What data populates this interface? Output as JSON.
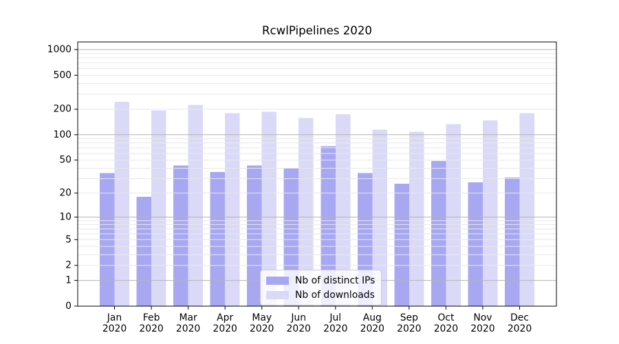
{
  "chart_data": {
    "type": "bar",
    "title": "RcwlPipelines 2020",
    "categories": {
      "months": [
        "Jan",
        "Feb",
        "Mar",
        "Apr",
        "May",
        "Jun",
        "Jul",
        "Aug",
        "Sep",
        "Oct",
        "Nov",
        "Dec"
      ],
      "year": "2020"
    },
    "series": [
      {
        "name": "Nb of distinct IPs",
        "color": "#a8a8f2",
        "values": [
          35,
          18,
          43,
          36,
          43,
          40,
          73,
          35,
          26,
          49,
          27,
          31
        ]
      },
      {
        "name": "Nb of downloads",
        "color": "#dadaf8",
        "values": [
          245,
          193,
          225,
          180,
          186,
          158,
          175,
          115,
          108,
          133,
          148,
          179
        ]
      }
    ],
    "y_axis": {
      "scale": "log1p",
      "ticks": [
        0,
        1,
        2,
        5,
        10,
        20,
        50,
        100,
        200,
        500,
        1000
      ],
      "major_ticks": [
        1,
        10,
        100,
        1000
      ],
      "ylim": [
        0,
        1200
      ]
    },
    "grid": {
      "on": true,
      "major_color": "#b3b3b3",
      "minor_color": "#e7e7e7",
      "position": "above-bars"
    },
    "legend": {
      "position": "lower-center",
      "border_color": "#cccccc"
    },
    "axis_color": "#000000",
    "text_color": "#000000"
  }
}
